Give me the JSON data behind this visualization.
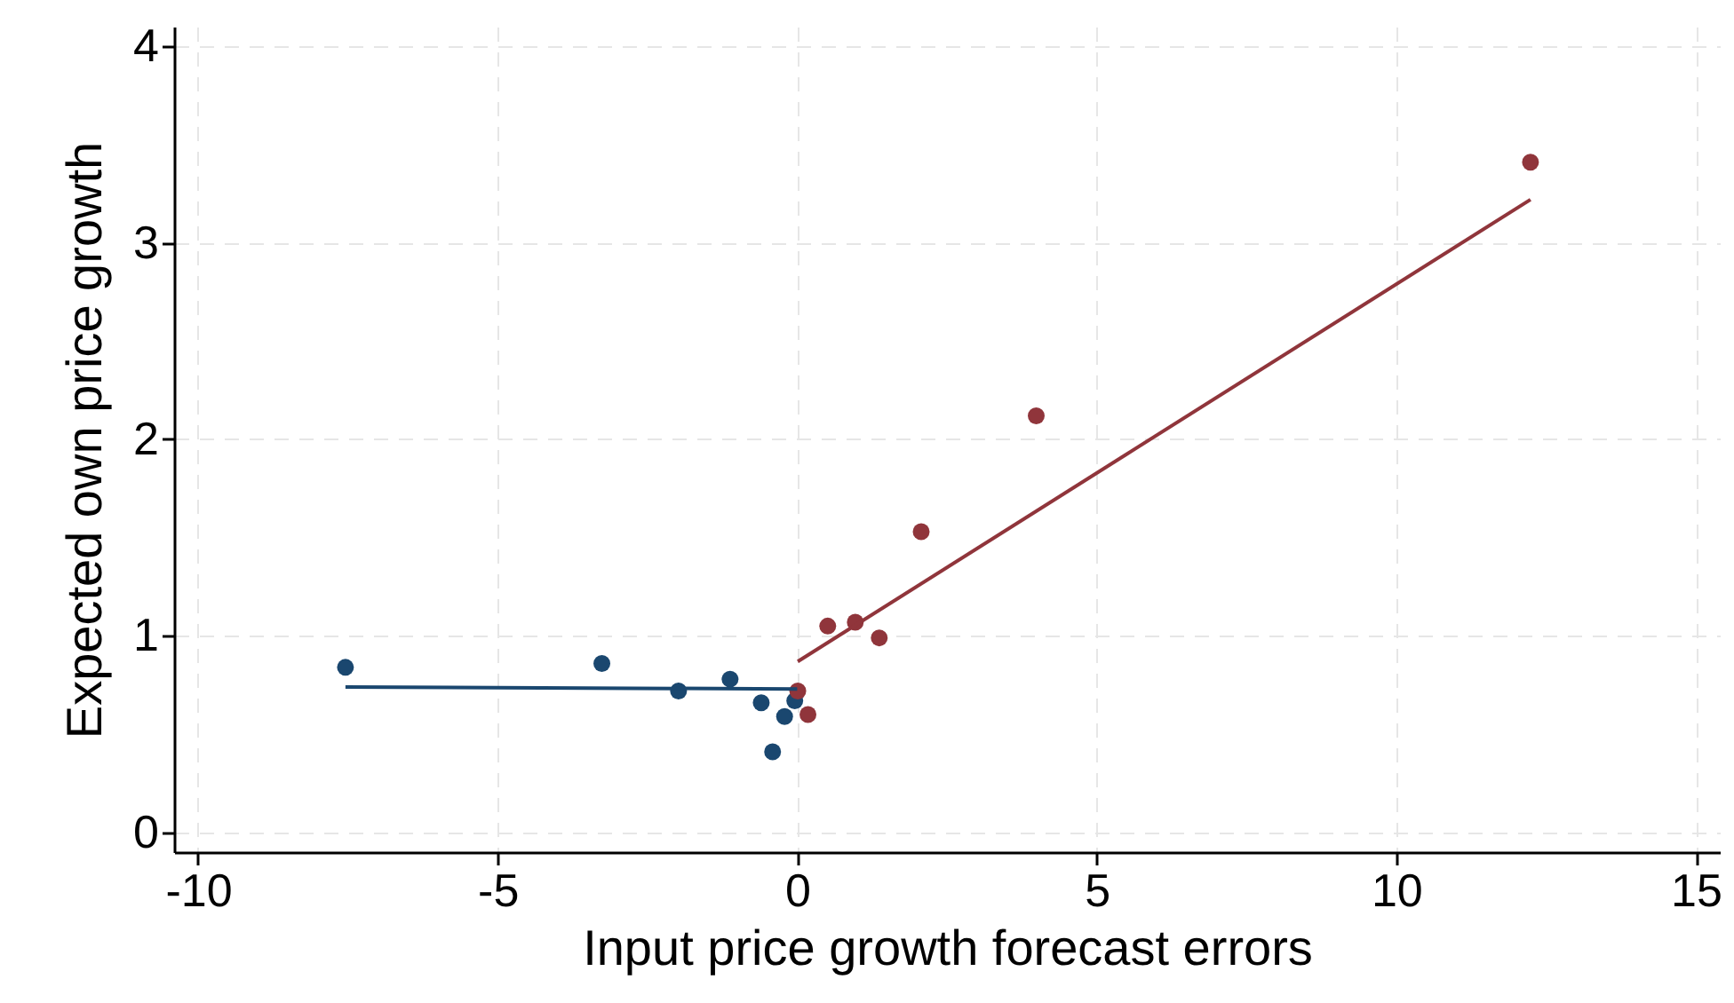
{
  "chart_data": {
    "type": "scatter",
    "xlabel": "Input price growth forecast errors",
    "ylabel": "Expected own price growth",
    "xlim": [
      -10.4,
      15.4
    ],
    "ylim": [
      -0.1,
      4.1
    ],
    "xticks": [
      -10,
      -5,
      0,
      5,
      10,
      15
    ],
    "yticks": [
      0,
      1,
      2,
      3,
      4
    ],
    "grid": true,
    "marker": "circle",
    "line_style": "solid",
    "series": [
      {
        "color": "#1a476f",
        "x": [
          -7.54,
          -3.26,
          -1.98,
          -1.12,
          -0.6,
          -0.41,
          -0.21,
          -0.04
        ],
        "values": [
          0.84,
          0.86,
          0.72,
          0.78,
          0.66,
          0.41,
          0.59,
          0.67
        ]
      },
      {
        "color": "#90353b",
        "x": [
          0.01,
          0.18,
          0.51,
          0.97,
          1.37,
          2.07,
          3.99,
          12.24
        ],
        "values": [
          0.72,
          0.6,
          1.05,
          1.07,
          0.99,
          1.53,
          2.12,
          3.41
        ]
      },
      {
        "type": "line",
        "marker": "none",
        "color": "#1a476f",
        "x": [
          -7.54,
          0.0
        ],
        "values": [
          0.74,
          0.73
        ]
      },
      {
        "type": "line",
        "marker": "none",
        "color": "#90353b",
        "x": [
          0.01,
          12.24
        ],
        "values": [
          0.87,
          3.22
        ]
      }
    ]
  }
}
